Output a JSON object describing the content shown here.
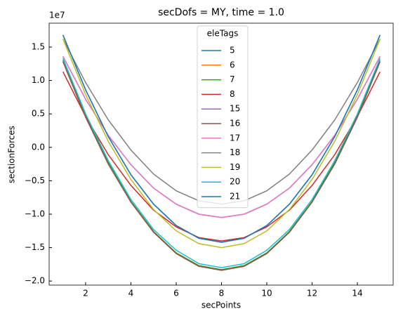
{
  "chart_data": {
    "type": "line",
    "title": "secDofs = MY, time = 1.0",
    "x_label": "secPoints",
    "y_label": "sectionForces",
    "y_offset_label": "1e7",
    "legend_title": "eleTags",
    "legend": "upper center",
    "grid": false,
    "x": [
      1,
      2,
      3,
      4,
      5,
      6,
      7,
      8,
      9,
      10,
      11,
      12,
      13,
      14,
      15
    ],
    "xlim": [
      0.39,
      15.58
    ],
    "xticks": [
      2,
      4,
      6,
      8,
      10,
      12,
      14
    ],
    "ylim": [
      -20610000,
      18570000
    ],
    "yticks": [
      {
        "value": -20000000,
        "label": "−2.0"
      },
      {
        "value": -15000000,
        "label": "−1.5"
      },
      {
        "value": -10000000,
        "label": "−1.0"
      },
      {
        "value": -5000000,
        "label": "−0.5"
      },
      {
        "value": 0,
        "label": "0.0"
      },
      {
        "value": 5000000,
        "label": "0.5"
      },
      {
        "value": 10000000,
        "label": "1.0"
      },
      {
        "value": 15000000,
        "label": "1.5"
      }
    ],
    "series": [
      {
        "name": "5",
        "color": "#1f77b4",
        "values": [
          16800000,
          8600000,
          1600000,
          -4100000,
          -8500000,
          -11700000,
          -13600000,
          -14200000,
          -13600000,
          -11700000,
          -8500000,
          -4100000,
          1600000,
          8600000,
          16800000
        ]
      },
      {
        "name": "6",
        "color": "#ff7f0e",
        "values": [
          13000000,
          4700000,
          -2300000,
          -8100000,
          -12600000,
          -15800000,
          -17700000,
          -18300000,
          -17700000,
          -15800000,
          -12600000,
          -8100000,
          -2300000,
          4700000,
          13000000
        ]
      },
      {
        "name": "7",
        "color": "#2ca02c",
        "values": [
          13000000,
          4700000,
          -2300000,
          -8100000,
          -12600000,
          -15800000,
          -17700000,
          -18300000,
          -17700000,
          -15800000,
          -12600000,
          -8100000,
          -2300000,
          4700000,
          13000000
        ]
      },
      {
        "name": "8",
        "color": "#d62728",
        "values": [
          11300000,
          4600000,
          -1100000,
          -5700000,
          -9400000,
          -11900000,
          -13500000,
          -14000000,
          -13500000,
          -11900000,
          -9400000,
          -5700000,
          -1100000,
          4600000,
          11300000
        ]
      },
      {
        "name": "15",
        "color": "#9467bd",
        "values": [
          13600000,
          7200000,
          1800000,
          -2600000,
          -6100000,
          -8500000,
          -10000000,
          -10500000,
          -10000000,
          -8500000,
          -6100000,
          -2600000,
          1800000,
          7200000,
          13600000
        ]
      },
      {
        "name": "16",
        "color": "#8c564b",
        "values": [
          12800000,
          4500000,
          -2500000,
          -8200000,
          -12700000,
          -15900000,
          -17800000,
          -18400000,
          -17800000,
          -15900000,
          -12700000,
          -8200000,
          -2500000,
          4500000,
          12800000
        ]
      },
      {
        "name": "17",
        "color": "#e377c2",
        "values": [
          13600000,
          7200000,
          1800000,
          -2600000,
          -6100000,
          -8500000,
          -10000000,
          -10500000,
          -10000000,
          -8500000,
          -6100000,
          -2600000,
          1800000,
          7200000,
          13600000
        ]
      },
      {
        "name": "18",
        "color": "#7f7f7f",
        "values": [
          16200000,
          9700000,
          4100000,
          -400000,
          -4000000,
          -6500000,
          -8000000,
          -8500000,
          -8000000,
          -6500000,
          -4000000,
          -400000,
          4100000,
          9700000,
          16200000
        ]
      },
      {
        "name": "19",
        "color": "#bcbd22",
        "values": [
          16200000,
          7900000,
          900000,
          -4800000,
          -9300000,
          -12500000,
          -14400000,
          -15000000,
          -14400000,
          -12500000,
          -9300000,
          -4800000,
          900000,
          7900000,
          16200000
        ]
      },
      {
        "name": "20",
        "color": "#17becf",
        "values": [
          13300000,
          5000000,
          -2000000,
          -7800000,
          -12300000,
          -15400000,
          -17400000,
          -18000000,
          -17400000,
          -15400000,
          -12300000,
          -7800000,
          -2000000,
          5000000,
          13300000
        ]
      },
      {
        "name": "21",
        "color": "#1f77b4",
        "values": [
          16800000,
          8600000,
          1600000,
          -4100000,
          -8500000,
          -11700000,
          -13600000,
          -14200000,
          -13600000,
          -11700000,
          -8500000,
          -4100000,
          1600000,
          8600000,
          16800000
        ]
      }
    ]
  }
}
